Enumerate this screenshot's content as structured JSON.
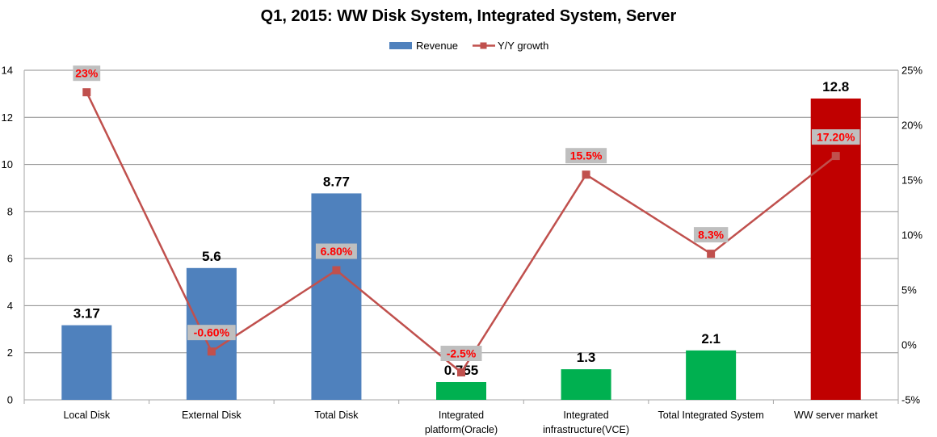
{
  "chart_data": {
    "type": "bar",
    "title": "Q1, 2015: WW Disk System, Integrated System, Server",
    "categories": [
      [
        "Local Disk"
      ],
      [
        "External Disk"
      ],
      [
        "Total Disk"
      ],
      [
        "Integrated",
        "platform(Oracle)"
      ],
      [
        "Integrated",
        "infrastructure(VCE)"
      ],
      [
        "Total Integrated System"
      ],
      [
        "WW server market"
      ]
    ],
    "series": [
      {
        "name": "Revenue",
        "type": "bar",
        "axis": "left",
        "values": [
          3.17,
          5.6,
          8.77,
          0.755,
          1.3,
          2.1,
          12.8
        ],
        "labels": [
          "3.17",
          "5.6",
          "8.77",
          "0.755",
          "1.3",
          "2.1",
          "12.8"
        ],
        "colors": [
          "#4F81BD",
          "#4F81BD",
          "#4F81BD",
          "#00B050",
          "#00B050",
          "#00B050",
          "#C00000"
        ]
      },
      {
        "name": "Y/Y growth",
        "type": "line",
        "axis": "right",
        "values": [
          23,
          -0.6,
          6.8,
          -2.5,
          15.5,
          8.3,
          17.2
        ],
        "labels": [
          "23%",
          "-0.60%",
          "6.80%",
          "-2.5%",
          "15.5%",
          "8.3%",
          "17.20%"
        ],
        "color": "#C0504D"
      }
    ],
    "y_left": {
      "min": 0,
      "max": 14,
      "ticks": [
        "0",
        "2",
        "4",
        "6",
        "8",
        "10",
        "12",
        "14"
      ]
    },
    "y_right": {
      "min": -5,
      "max": 25,
      "ticks": [
        "-5%",
        "0%",
        "5%",
        "10%",
        "15%",
        "20%",
        "25%"
      ]
    },
    "legend": {
      "position": "top-center",
      "entries": [
        "Revenue",
        "Y/Y growth"
      ]
    },
    "grid": true,
    "colors": {
      "revenue": "#4F81BD",
      "growth_line": "#C0504D",
      "growth_marker": "#C0504D",
      "pct_label_text": "#FF0000",
      "pct_label_bg": "#BFBFBF",
      "gridline": "#8C8C8C",
      "axis": "#A6A6A6"
    }
  }
}
